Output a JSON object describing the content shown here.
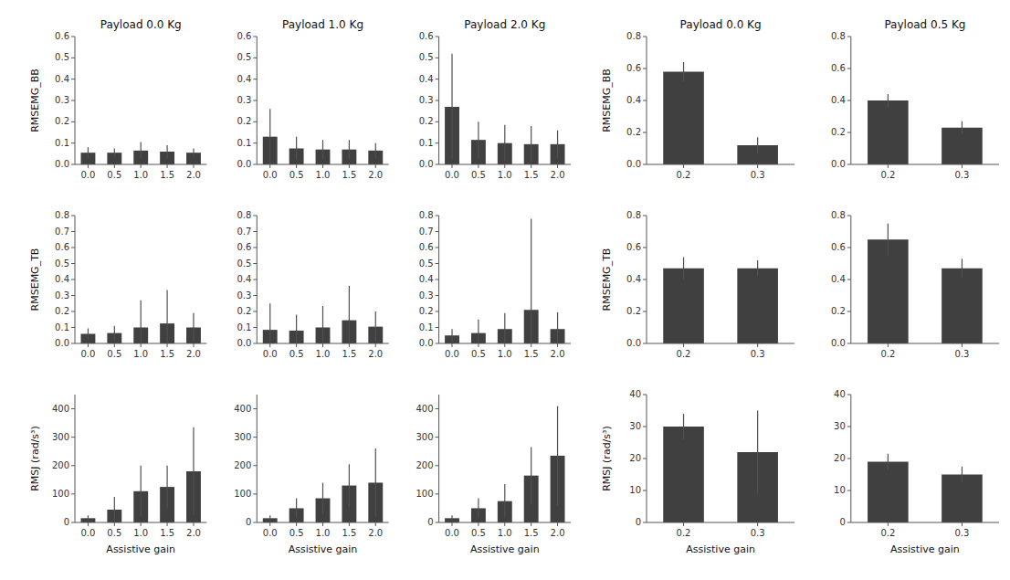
{
  "chart_data": [
    {
      "type": "bar",
      "title": "Payload 0.0 Kg",
      "ylabel": "RMSEMG_BB",
      "categories": [
        "0.0",
        "0.5",
        "1.0",
        "1.5",
        "2.0"
      ],
      "values": [
        0.055,
        0.055,
        0.065,
        0.06,
        0.055
      ],
      "errors": [
        0.025,
        0.02,
        0.04,
        0.03,
        0.02
      ],
      "color": "#404040",
      "ylim": [
        0,
        0.6
      ],
      "yticks": [
        {
          "value": 0,
          "label": "0.0"
        },
        0.1,
        0.2,
        0.3,
        0.4,
        0.5,
        0.6
      ]
    },
    {
      "type": "bar",
      "title": "Payload 1.0 Kg",
      "categories": [
        "0.0",
        "0.5",
        "1.0",
        "1.5",
        "2.0"
      ],
      "values": [
        0.13,
        0.075,
        0.07,
        0.07,
        0.065
      ],
      "errors": [
        0.13,
        0.055,
        0.045,
        0.045,
        0.035
      ],
      "color": "#404040",
      "ylim": [
        0,
        0.6
      ],
      "yticks": [
        {
          "value": 0,
          "label": "0.0"
        },
        0.1,
        0.2,
        0.3,
        0.4,
        0.5,
        0.6
      ]
    },
    {
      "type": "bar",
      "title": "Payload 2.0 Kg",
      "categories": [
        "0.0",
        "0.5",
        "1.0",
        "1.5",
        "2.0"
      ],
      "values": [
        0.27,
        0.115,
        0.1,
        0.095,
        0.095
      ],
      "errors": [
        0.25,
        0.085,
        0.085,
        0.085,
        0.065
      ],
      "color": "#404040",
      "ylim": [
        0,
        0.6
      ],
      "yticks": [
        {
          "value": 0,
          "label": "0.0"
        },
        0.1,
        0.2,
        0.3,
        0.4,
        0.5,
        0.6
      ]
    },
    {
      "type": "bar",
      "title": "Payload 0.0 Kg",
      "ylabel": "RMSEMG_BB",
      "categories": [
        "0.2",
        "0.3"
      ],
      "values": [
        0.58,
        0.12
      ],
      "errors": [
        0.06,
        0.05
      ],
      "color": "#404040",
      "ylim": [
        0,
        0.8
      ],
      "yticks": [
        {
          "value": 0,
          "label": "0.0"
        },
        0.2,
        0.4,
        0.6,
        0.8
      ]
    },
    {
      "type": "bar",
      "title": "Payload 0.5 Kg",
      "categories": [
        "0.2",
        "0.3"
      ],
      "values": [
        0.4,
        0.23
      ],
      "errors": [
        0.04,
        0.04
      ],
      "color": "#404040",
      "ylim": [
        0,
        0.8
      ],
      "yticks": [
        {
          "value": 0,
          "label": "0.0"
        },
        0.2,
        0.4,
        0.6,
        0.8
      ]
    },
    {
      "type": "bar",
      "ylabel": "RMSEMG_TB",
      "categories": [
        "0.0",
        "0.5",
        "1.0",
        "1.5",
        "2.0"
      ],
      "values": [
        0.06,
        0.065,
        0.1,
        0.125,
        0.1
      ],
      "errors": [
        0.035,
        0.045,
        0.17,
        0.21,
        0.09
      ],
      "color": "#404040",
      "ylim": [
        0,
        0.8
      ],
      "yticks": [
        {
          "value": 0,
          "label": "0.0"
        },
        0.1,
        0.2,
        0.3,
        0.4,
        0.5,
        0.6,
        0.7,
        0.8
      ]
    },
    {
      "type": "bar",
      "categories": [
        "0.0",
        "0.5",
        "1.0",
        "1.5",
        "2.0"
      ],
      "values": [
        0.085,
        0.08,
        0.1,
        0.145,
        0.105
      ],
      "errors": [
        0.165,
        0.1,
        0.135,
        0.215,
        0.095
      ],
      "color": "#404040",
      "ylim": [
        0,
        0.8
      ],
      "yticks": [
        {
          "value": 0,
          "label": "0.0"
        },
        0.1,
        0.2,
        0.3,
        0.4,
        0.5,
        0.6,
        0.7,
        0.8
      ]
    },
    {
      "type": "bar",
      "categories": [
        "0.0",
        "0.5",
        "1.0",
        "1.5",
        "2.0"
      ],
      "values": [
        0.05,
        0.065,
        0.09,
        0.21,
        0.09
      ],
      "errors": [
        0.04,
        0.085,
        0.1,
        0.57,
        0.105
      ],
      "color": "#404040",
      "ylim": [
        0,
        0.8
      ],
      "yticks": [
        {
          "value": 0,
          "label": "0.0"
        },
        0.1,
        0.2,
        0.3,
        0.4,
        0.5,
        0.6,
        0.7,
        0.8
      ]
    },
    {
      "type": "bar",
      "ylabel": "RMSEMG_TB",
      "categories": [
        "0.2",
        "0.3"
      ],
      "values": [
        0.47,
        0.47
      ],
      "errors": [
        0.07,
        0.05
      ],
      "color": "#404040",
      "ylim": [
        0,
        0.8
      ],
      "yticks": [
        {
          "value": 0,
          "label": "0.0"
        },
        0.2,
        0.4,
        0.6,
        0.8
      ]
    },
    {
      "type": "bar",
      "categories": [
        "0.2",
        "0.3"
      ],
      "values": [
        0.65,
        0.47
      ],
      "errors": [
        0.1,
        0.06
      ],
      "color": "#404040",
      "ylim": [
        0,
        0.8
      ],
      "yticks": [
        {
          "value": 0,
          "label": "0.0"
        },
        0.2,
        0.4,
        0.6,
        0.8
      ]
    },
    {
      "type": "bar",
      "ylabel": "RMSJ (rad/s³)",
      "xlabel": "Assistive gain",
      "categories": [
        "0.0",
        "0.5",
        "1.0",
        "1.5",
        "2.0"
      ],
      "values": [
        15,
        45,
        110,
        125,
        180
      ],
      "errors": [
        10,
        45,
        90,
        75,
        155
      ],
      "color": "#404040",
      "ylim": [
        0,
        450
      ],
      "yticks": [
        0,
        100,
        200,
        300,
        400
      ]
    },
    {
      "type": "bar",
      "xlabel": "Assistive gain",
      "categories": [
        "0.0",
        "0.5",
        "1.0",
        "1.5",
        "2.0"
      ],
      "values": [
        15,
        50,
        85,
        130,
        140
      ],
      "errors": [
        10,
        35,
        55,
        75,
        120
      ],
      "color": "#404040",
      "ylim": [
        0,
        450
      ],
      "yticks": [
        0,
        100,
        200,
        300,
        400
      ]
    },
    {
      "type": "bar",
      "xlabel": "Assistive gain",
      "categories": [
        "0.0",
        "0.5",
        "1.0",
        "1.5",
        "2.0"
      ],
      "values": [
        15,
        50,
        75,
        165,
        235
      ],
      "errors": [
        10,
        35,
        60,
        100,
        175
      ],
      "color": "#404040",
      "ylim": [
        0,
        450
      ],
      "yticks": [
        0,
        100,
        200,
        300,
        400
      ]
    },
    {
      "type": "bar",
      "ylabel": "RMSJ (rad/s³)",
      "xlabel": "Assistive gain",
      "categories": [
        "0.2",
        "0.3"
      ],
      "values": [
        30,
        22
      ],
      "errors": [
        4,
        13
      ],
      "color": "#404040",
      "ylim": [
        0,
        40
      ],
      "yticks": [
        0,
        10,
        20,
        30,
        40
      ]
    },
    {
      "type": "bar",
      "xlabel": "Assistive gain",
      "categories": [
        "0.2",
        "0.3"
      ],
      "values": [
        19,
        15
      ],
      "errors": [
        2.5,
        2.5
      ],
      "color": "#404040",
      "ylim": [
        0,
        40
      ],
      "yticks": [
        0,
        10,
        20,
        30,
        40
      ]
    }
  ]
}
